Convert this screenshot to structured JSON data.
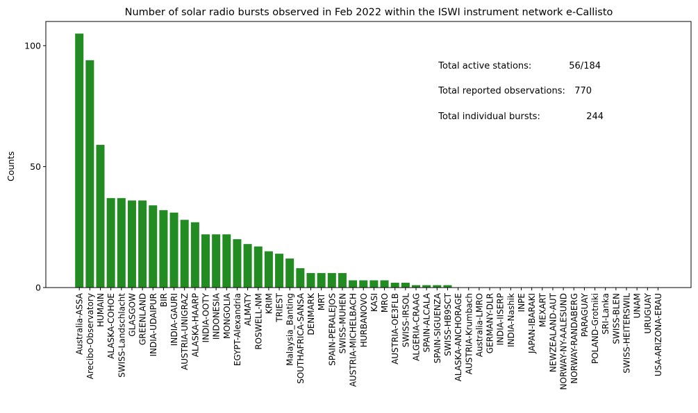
{
  "chart_data": {
    "type": "bar",
    "title": "Number of solar radio bursts observed in Feb 2022 within the ISWI instrument network e-Callisto",
    "xlabel": "",
    "ylabel": "Counts",
    "ylim": [
      0,
      110
    ],
    "yticks": [
      0,
      50,
      100
    ],
    "bar_color": "#228b22",
    "categories": [
      "Australia-ASSA",
      "Arecibo-Observatory",
      "HUMAIN",
      "ALASKA-COHOE",
      "SWISS-Landschlacht",
      "GLASGOW",
      "GREENLAND",
      "INDIA-UDAIPUR",
      "BIR",
      "INDIA-GAURI",
      "AUSTRIA-UNIGRAZ",
      "ALASKA-HAARP",
      "INDIA-OOTY",
      "INDONESIA",
      "MONGOLIA",
      "EGYPT-Alexandria",
      "ALMATY",
      "ROSWELL-NM",
      "KRIM",
      "TRIEST",
      "Malaysia_Banting",
      "SOUTHAFRICA-SANSA",
      "DENMARK",
      "MRT",
      "SPAIN-PERALEJOS",
      "SWISS-MUHEN",
      "AUSTRIA-MICHELBACH",
      "HURBANOVO",
      "KASI",
      "MRO",
      "AUSTRIA-OE3FLB",
      "SWISS-IRSOL",
      "ALGERIA-CRAAG",
      "SPAIN-ALCALA",
      "SPAIN-SIGUENZA",
      "SWISS-HB9SCT",
      "ALASKA-ANCHORAGE",
      "AUSTRIA-Krumbach",
      "Australia-LMRO",
      "GERMANY-DLR",
      "INDIA-IISERP",
      "INDIA-Nashik",
      "INPE",
      "JAPAN-IBARAKI",
      "MEXART",
      "NEWZEALAND-AUT",
      "NORWAY-NY-AALESUND",
      "NORWAY-RANDABERG",
      "PARAGUAY",
      "POLAND-Grotniki",
      "SRI-Lanka",
      "SWISS-BLEN",
      "SWISS-HEITERSWIL",
      "UNAM",
      "URUGUAY",
      "USA-ARIZONA-ERAU"
    ],
    "values": [
      105,
      94,
      59,
      37,
      37,
      36,
      36,
      34,
      32,
      31,
      28,
      27,
      22,
      22,
      22,
      20,
      18,
      17,
      15,
      14,
      12,
      8,
      6,
      6,
      6,
      6,
      3,
      3,
      3,
      3,
      2,
      2,
      1,
      1,
      1,
      1,
      0,
      0,
      0,
      0,
      0,
      0,
      0,
      0,
      0,
      0,
      0,
      0,
      0,
      0,
      0,
      0,
      0,
      0,
      0,
      0
    ],
    "annotations": [
      {
        "label": "Total active stations:",
        "value": "56/184"
      },
      {
        "label": "Total reported observations:",
        "value": "770"
      },
      {
        "label": "Total individual bursts:",
        "value": "244"
      }
    ]
  }
}
